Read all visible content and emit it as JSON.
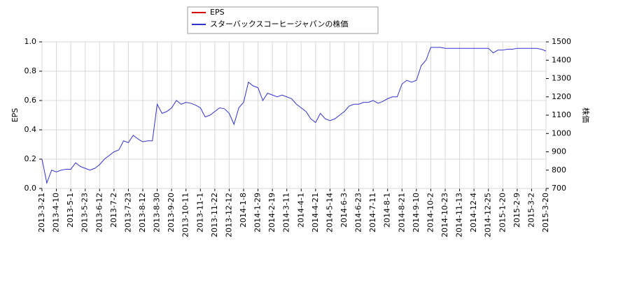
{
  "chart_data": {
    "type": "line",
    "y_label": "EPS",
    "y2_label": "株価",
    "categories": [
      "2013-3-21",
      null,
      null,
      "2013-4-10",
      null,
      null,
      "2013-5-1",
      null,
      null,
      "2013-5-23",
      null,
      null,
      "2013-6-12",
      null,
      null,
      "2013-7-2",
      null,
      null,
      "2013-7-23",
      null,
      null,
      "2013-8-12",
      null,
      null,
      "2013-8-30",
      null,
      null,
      "2013-9-20",
      null,
      null,
      "2013-10-11",
      null,
      null,
      "2013-11-1",
      null,
      null,
      "2013-11-22",
      null,
      null,
      "2013-12-12",
      null,
      null,
      "2014-1-8",
      null,
      null,
      "2014-1-29",
      null,
      null,
      "2014-2-19",
      null,
      null,
      "2014-3-11",
      null,
      null,
      "2014-4-1",
      null,
      null,
      "2014-4-21",
      null,
      null,
      "2014-5-14",
      null,
      null,
      "2014-6-3",
      null,
      null,
      "2014-6-23",
      null,
      null,
      "2014-7-11",
      null,
      null,
      "2014-8-1",
      null,
      null,
      "2014-8-21",
      null,
      null,
      "2014-9-10",
      null,
      null,
      "2014-10-2",
      null,
      null,
      "2014-10-23",
      null,
      null,
      "2014-11-13",
      null,
      null,
      "2014-12-4",
      null,
      null,
      "2014-12-25",
      null,
      null,
      "2015-1-20",
      null,
      null,
      "2015-2-9",
      null,
      null,
      "2015-3-2",
      null,
      null,
      "2015-3-20"
    ],
    "series": [
      {
        "name": "EPS",
        "color": "#dd0000",
        "axis": "y",
        "values": [
          null,
          null,
          null,
          null,
          null,
          null,
          null,
          null,
          null,
          null,
          null,
          null,
          null,
          null,
          null,
          null,
          null,
          null,
          null,
          null,
          null,
          null,
          null,
          null,
          null,
          null,
          null,
          null,
          null,
          null,
          null,
          null,
          null,
          null,
          null,
          null,
          null,
          null,
          null,
          null,
          null,
          null,
          null,
          null,
          null,
          null,
          null,
          null,
          null,
          null,
          null,
          null,
          null,
          null,
          null,
          null,
          null,
          null,
          null,
          null,
          null,
          null,
          null,
          null,
          null,
          null,
          null,
          null,
          null,
          null,
          null,
          null,
          null,
          null,
          null,
          null,
          null,
          null,
          null,
          null,
          null,
          null,
          null,
          null,
          null,
          null,
          null,
          null,
          null,
          null,
          null,
          null,
          null,
          null,
          null,
          null,
          null,
          null,
          null,
          null,
          null,
          null,
          null,
          null,
          null,
          null
        ]
      },
      {
        "name": "スターバックスコーヒージャパンの株価",
        "color": "#3333cc",
        "axis": "y2",
        "values": [
          860,
          730,
          800,
          790,
          800,
          805,
          805,
          840,
          820,
          810,
          800,
          810,
          830,
          860,
          880,
          900,
          910,
          960,
          950,
          990,
          970,
          955,
          960,
          960,
          1160,
          1110,
          1120,
          1140,
          1180,
          1160,
          1170,
          1165,
          1155,
          1140,
          1090,
          1100,
          1120,
          1140,
          1135,
          1110,
          1050,
          1140,
          1170,
          1280,
          1260,
          1250,
          1180,
          1220,
          1210,
          1200,
          1210,
          1200,
          1190,
          1160,
          1140,
          1120,
          1080,
          1060,
          1110,
          1080,
          1070,
          1080,
          1100,
          1120,
          1150,
          1160,
          1160,
          1170,
          1170,
          1180,
          1165,
          1175,
          1190,
          1200,
          1200,
          1270,
          1290,
          1280,
          1290,
          1370,
          1400,
          1470,
          1470,
          1470,
          1465,
          1465,
          1465,
          1465,
          1465,
          1465,
          1465,
          1465,
          1465,
          1465,
          1440,
          1455,
          1455,
          1460,
          1460,
          1465,
          1465,
          1465,
          1465,
          1465,
          1460,
          1450
        ]
      }
    ],
    "ylim": [
      0,
      1
    ],
    "yticks": [
      {
        "value": 0,
        "label": "0.0"
      },
      0.2,
      0.4,
      0.6,
      0.8,
      {
        "value": 1,
        "label": "1.0"
      }
    ],
    "y2lim": [
      700,
      1500
    ],
    "y2ticks": [
      700,
      800,
      900,
      1000,
      1100,
      1200,
      1300,
      1400,
      1500
    ],
    "grid": true
  }
}
